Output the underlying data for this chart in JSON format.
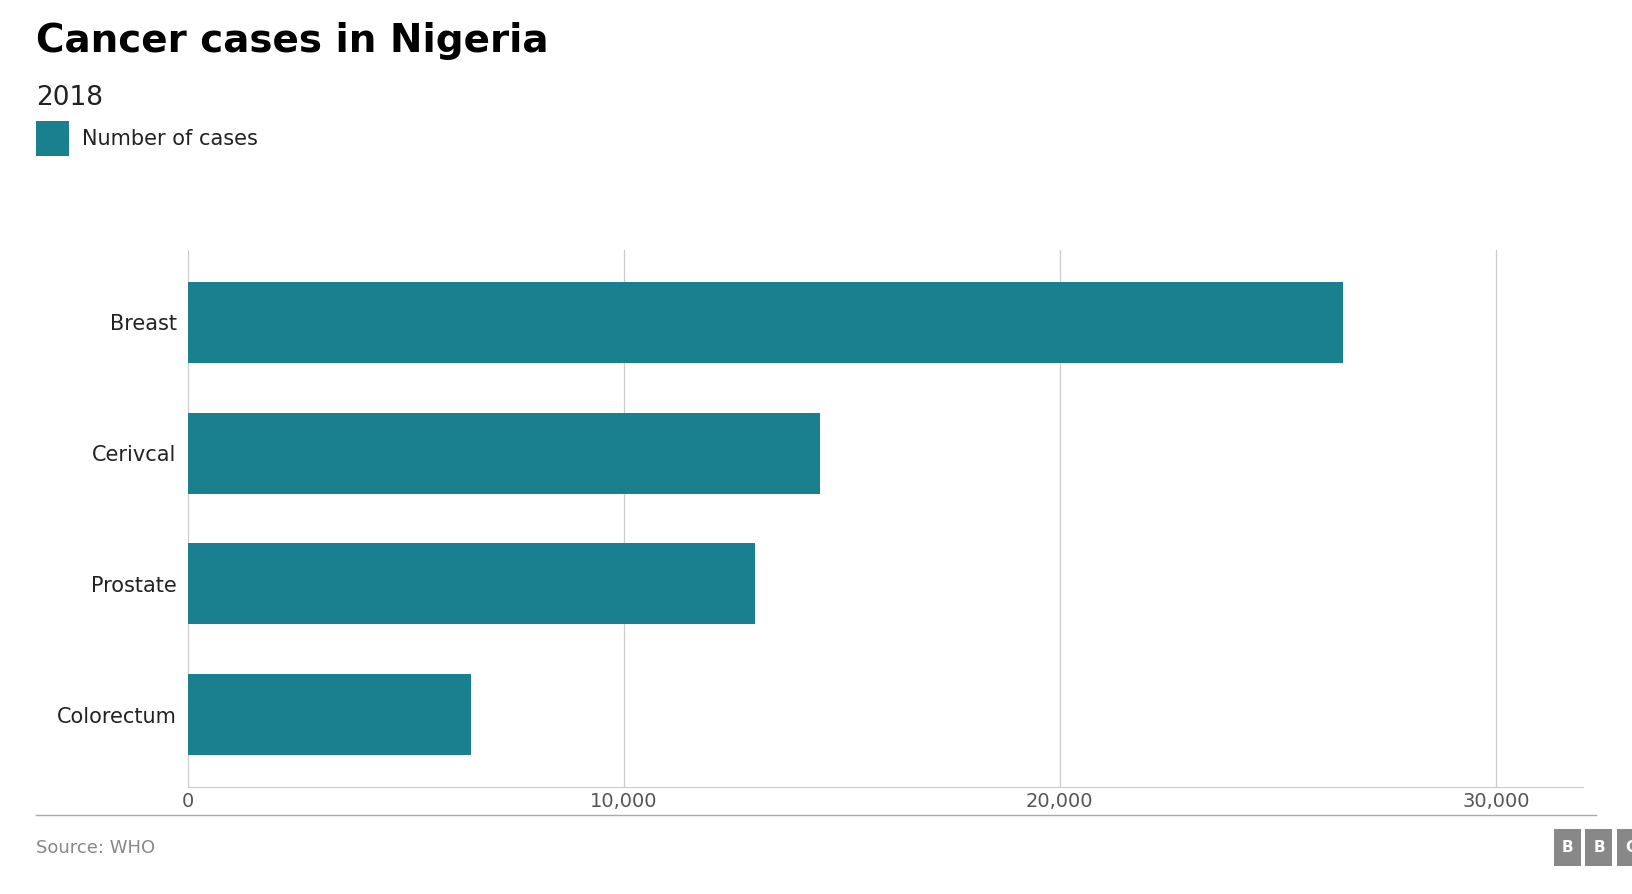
{
  "title": "Cancer cases in Nigeria",
  "subtitle": "2018",
  "legend_label": "Number of cases",
  "categories": [
    "Breast",
    "Cerivcal",
    "Prostate",
    "Colorectum"
  ],
  "values": [
    26500,
    14500,
    13000,
    6500
  ],
  "bar_color": "#1a7f8e",
  "legend_color": "#1a7f8e",
  "xlim": [
    0,
    32000
  ],
  "xticks": [
    0,
    10000,
    20000,
    30000
  ],
  "xtick_labels": [
    "0",
    "10,000",
    "20,000",
    "30,000"
  ],
  "source_text": "Source: WHO",
  "bbc_text": "BBC",
  "background_color": "#ffffff",
  "title_fontsize": 28,
  "subtitle_fontsize": 19,
  "legend_fontsize": 15,
  "tick_fontsize": 14,
  "ylabel_fontsize": 15,
  "source_fontsize": 13,
  "bar_height": 0.62
}
